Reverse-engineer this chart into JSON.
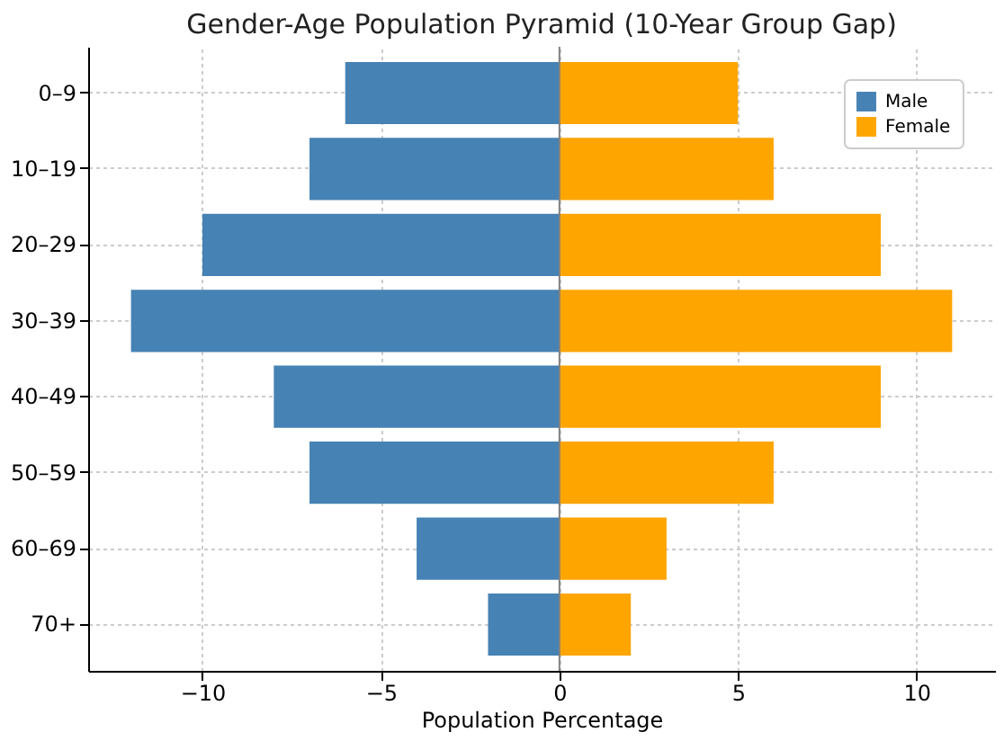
{
  "chart_data": {
    "type": "bar",
    "orientation": "horizontal",
    "stacked": true,
    "title": "Gender-Age Population Pyramid (10-Year Group Gap)",
    "xlabel": "Population Percentage",
    "categories": [
      "0–9",
      "10–19",
      "20–29",
      "30–39",
      "40–49",
      "50–59",
      "60–69",
      "70+"
    ],
    "series": [
      {
        "name": "Male",
        "color": "#4682b4",
        "values": [
          -6,
          -7,
          -10,
          -12,
          -8,
          -7,
          -4,
          -2
        ]
      },
      {
        "name": "Female",
        "color": "#ffa500",
        "values": [
          5,
          6,
          9,
          11,
          9,
          6,
          3,
          2
        ]
      }
    ],
    "xlim": [
      -13.2,
      12.2
    ],
    "xticks": [
      {
        "value": -10,
        "label": "−10"
      },
      {
        "value": -5,
        "label": "−5"
      },
      0,
      5,
      10
    ],
    "ref_lines": [
      {
        "axis": "x",
        "value": 0,
        "color": "#808080"
      }
    ],
    "grid": true,
    "legend": "top right"
  }
}
